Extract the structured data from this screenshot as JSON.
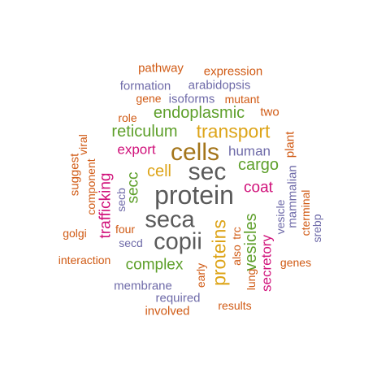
{
  "words": [
    {
      "text": "pathway",
      "color": "orange"
    },
    {
      "text": "expression",
      "color": "orange"
    },
    {
      "text": "formation",
      "color": "purple"
    },
    {
      "text": "arabidopsis",
      "color": "purple"
    },
    {
      "text": "gene",
      "color": "orange"
    },
    {
      "text": "isoforms",
      "color": "purple"
    },
    {
      "text": "mutant",
      "color": "orange"
    },
    {
      "text": "role",
      "color": "orange"
    },
    {
      "text": "endoplasmic",
      "color": "green"
    },
    {
      "text": "two",
      "color": "orange"
    },
    {
      "text": "reticulum",
      "color": "green"
    },
    {
      "text": "transport",
      "color": "gold"
    },
    {
      "text": "viral",
      "color": "orange"
    },
    {
      "text": "export",
      "color": "pink"
    },
    {
      "text": "cells",
      "color": "brown"
    },
    {
      "text": "human",
      "color": "purple"
    },
    {
      "text": "plant",
      "color": "orange"
    },
    {
      "text": "suggest",
      "color": "orange"
    },
    {
      "text": "component",
      "color": "orange"
    },
    {
      "text": "cell",
      "color": "gold"
    },
    {
      "text": "sec",
      "color": "gray"
    },
    {
      "text": "cargo",
      "color": "green"
    },
    {
      "text": "mammalian",
      "color": "purple"
    },
    {
      "text": "trafficking",
      "color": "pink"
    },
    {
      "text": "secb",
      "color": "purple"
    },
    {
      "text": "secc",
      "color": "green"
    },
    {
      "text": "protein",
      "color": "gray"
    },
    {
      "text": "coat",
      "color": "pink"
    },
    {
      "text": "vesicle",
      "color": "purple"
    },
    {
      "text": "cterminal",
      "color": "orange"
    },
    {
      "text": "srebp",
      "color": "purple"
    },
    {
      "text": "seca",
      "color": "gray"
    },
    {
      "text": "golgi",
      "color": "orange"
    },
    {
      "text": "four",
      "color": "orange"
    },
    {
      "text": "proteins",
      "color": "gold"
    },
    {
      "text": "trc",
      "color": "orange"
    },
    {
      "text": "vesicles",
      "color": "green"
    },
    {
      "text": "secd",
      "color": "purple"
    },
    {
      "text": "copii",
      "color": "gray"
    },
    {
      "text": "also",
      "color": "orange"
    },
    {
      "text": "secretory",
      "color": "pink"
    },
    {
      "text": "interaction",
      "color": "orange"
    },
    {
      "text": "complex",
      "color": "green"
    },
    {
      "text": "genes",
      "color": "orange"
    },
    {
      "text": "lung",
      "color": "orange"
    },
    {
      "text": "early",
      "color": "orange"
    },
    {
      "text": "membrane",
      "color": "purple"
    },
    {
      "text": "required",
      "color": "purple"
    },
    {
      "text": "results",
      "color": "orange"
    },
    {
      "text": "involved",
      "color": "orange"
    }
  ]
}
